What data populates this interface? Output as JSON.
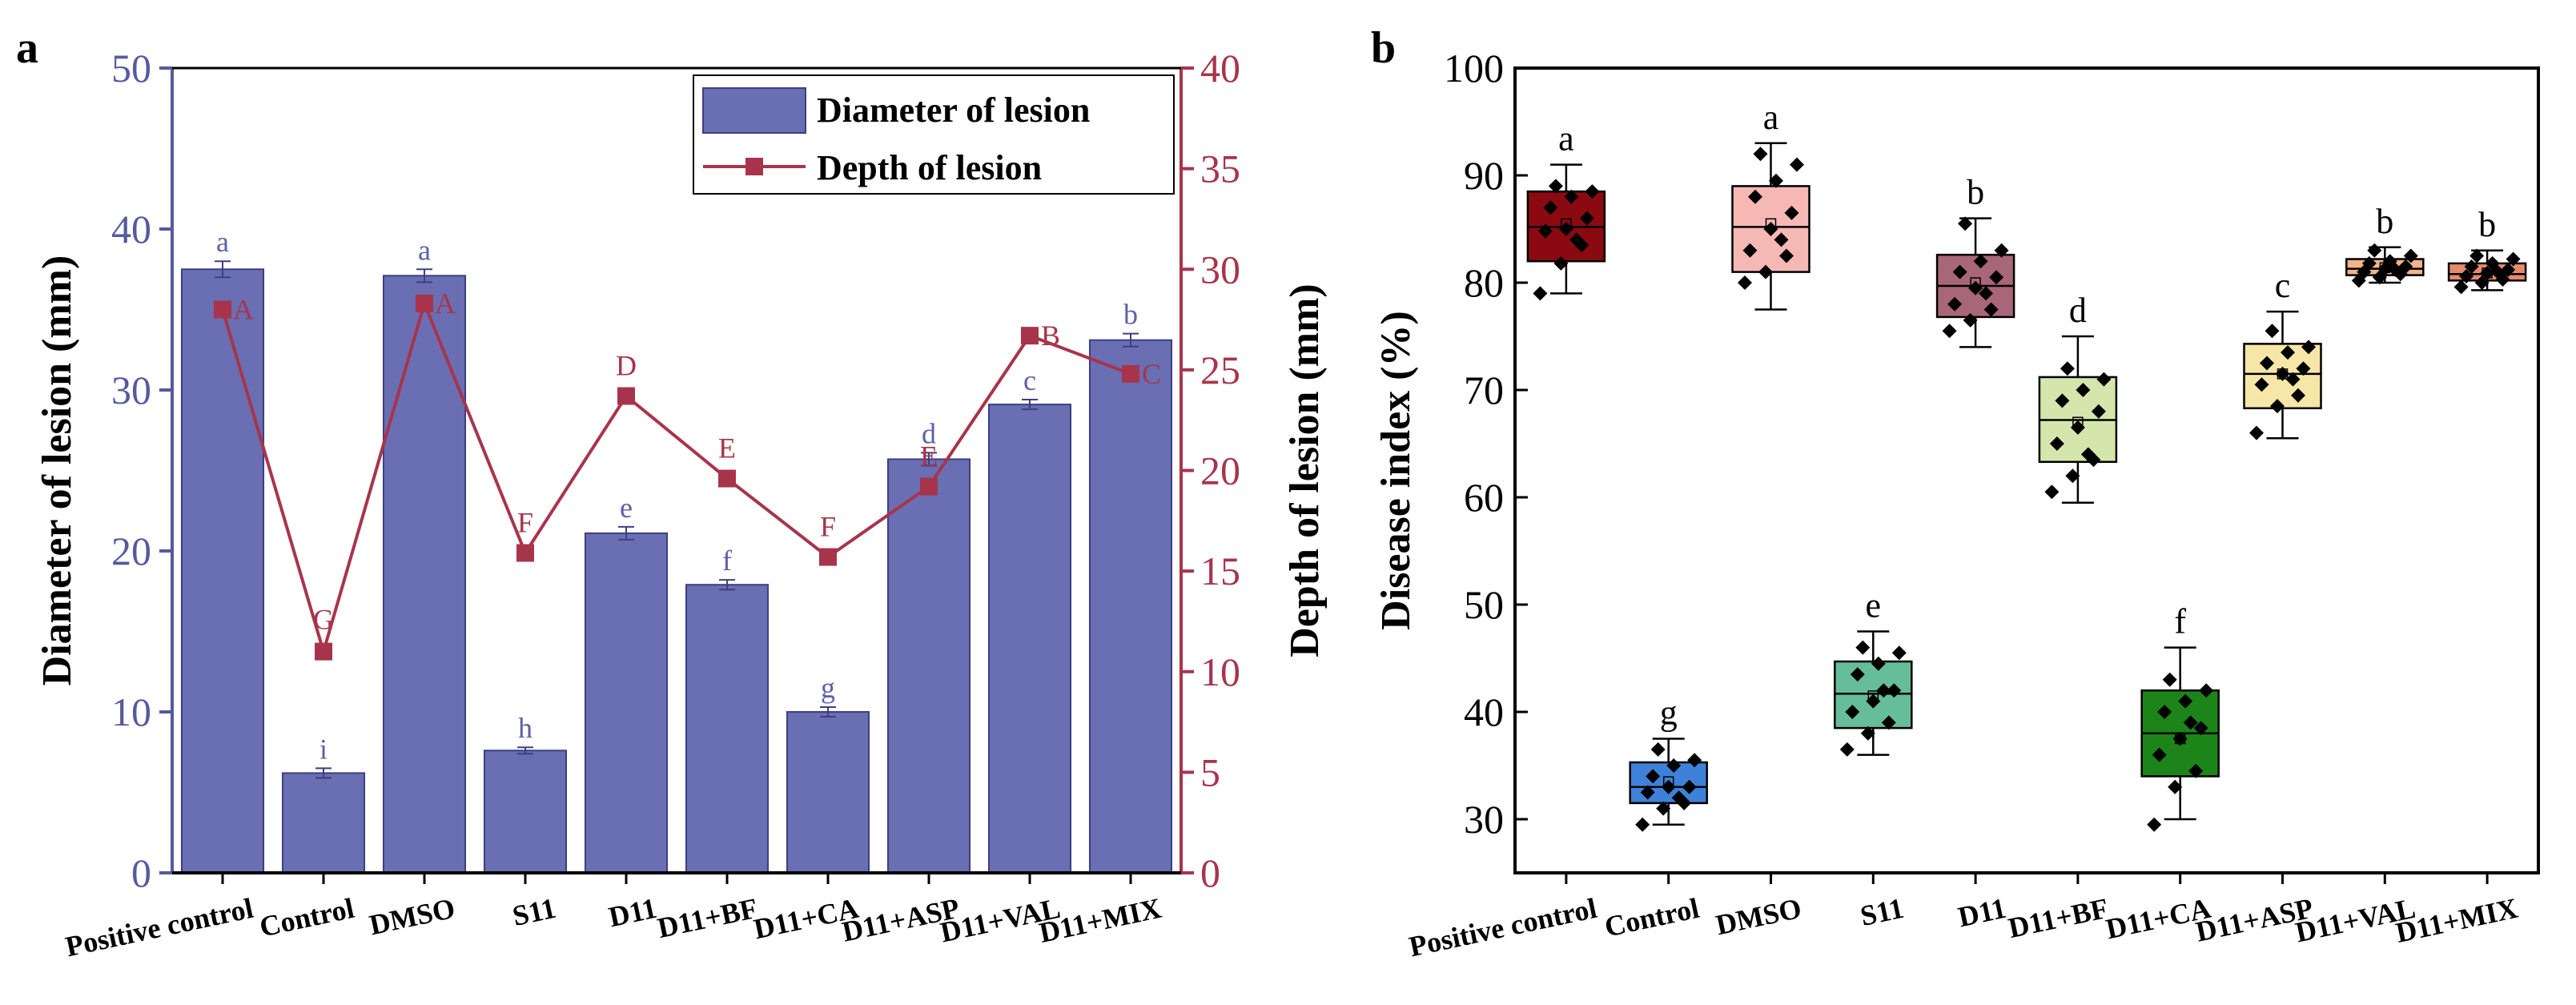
{
  "chart_data": [
    {
      "panel": "a",
      "type": "bar+line",
      "categories": [
        "Positive control",
        "Control",
        "DMSO",
        "S11",
        "D11",
        "D11+BF",
        "D11+CA",
        "D11+ASP",
        "D11+VAL",
        "D11+MIX"
      ],
      "series": [
        {
          "name": "Diameter of lesion",
          "type": "bar",
          "axis": "left",
          "values": [
            37.5,
            6.2,
            37.1,
            7.6,
            21.1,
            17.9,
            10.0,
            25.7,
            29.1,
            33.1
          ],
          "errors": [
            0.5,
            0.3,
            0.4,
            0.2,
            0.4,
            0.3,
            0.3,
            0.4,
            0.3,
            0.4
          ],
          "labels": [
            "a",
            "i",
            "a",
            "h",
            "e",
            "f",
            "g",
            "d",
            "c",
            "b"
          ],
          "color": "#6a6eb3"
        },
        {
          "name": "Depth of lesion",
          "type": "line",
          "axis": "right",
          "values": [
            28.0,
            11.0,
            28.3,
            15.9,
            23.7,
            19.6,
            15.7,
            19.2,
            26.7,
            24.8
          ],
          "labels": [
            "A",
            "G",
            "A",
            "F",
            "D",
            "E",
            "F",
            "E",
            "B",
            "C"
          ],
          "color": "#a8344b"
        }
      ],
      "ylabel_left": "Diameter of lesion (mm)",
      "ylabel_right": "Depth of lesion (mm)",
      "ylim_left": [
        0,
        50
      ],
      "ylim_right": [
        0,
        40
      ],
      "yticks_left": [
        0,
        10,
        20,
        30,
        40,
        50
      ],
      "yticks_right": [
        0,
        5,
        10,
        15,
        20,
        25,
        30,
        35,
        40
      ],
      "legend": "top-right"
    },
    {
      "panel": "b",
      "type": "box",
      "categories": [
        "Positive control",
        "Control",
        "DMSO",
        "S11",
        "D11",
        "D11+BF",
        "D11+CA",
        "D11+ASP",
        "D11+VAL",
        "D11+MIX"
      ],
      "boxes": [
        {
          "min": 79,
          "q1": 82,
          "median": 85.2,
          "mean": 85.5,
          "q3": 88.5,
          "max": 91,
          "label": "a",
          "color": "#8b0a12",
          "points": [
            79,
            81.8,
            83.5,
            84.8,
            85,
            86,
            87,
            88,
            88.5,
            89,
            84
          ]
        },
        {
          "min": 29.5,
          "q1": 31.5,
          "median": 33,
          "mean": 33.5,
          "q3": 35.3,
          "max": 37.5,
          "label": "g",
          "color": "#3d82d8",
          "points": [
            29.5,
            31,
            31.5,
            32.5,
            33,
            33,
            34,
            35,
            35.5,
            36.5,
            32
          ]
        },
        {
          "min": 77.5,
          "q1": 81,
          "median": 85.2,
          "mean": 85.5,
          "q3": 89,
          "max": 93,
          "label": "a",
          "color": "#f6b8b5",
          "points": [
            80,
            81,
            82.5,
            83,
            85,
            86.5,
            88,
            89.5,
            91,
            92,
            84
          ]
        },
        {
          "min": 36,
          "q1": 38.5,
          "median": 41.7,
          "mean": 41.5,
          "q3": 44.7,
          "max": 47.5,
          "label": "e",
          "color": "#66bd9a",
          "points": [
            36.5,
            38,
            39,
            40,
            41,
            42,
            43.5,
            44.5,
            45.5,
            46,
            42
          ]
        },
        {
          "min": 74,
          "q1": 76.8,
          "median": 79.7,
          "mean": 80,
          "q3": 82.6,
          "max": 86,
          "label": "b",
          "color": "#a8667a",
          "points": [
            75.5,
            76.5,
            77.5,
            78,
            79.5,
            80.5,
            81,
            82,
            83,
            85.5,
            79
          ]
        },
        {
          "min": 59.5,
          "q1": 63.3,
          "median": 67.2,
          "mean": 67,
          "q3": 71.2,
          "max": 75,
          "label": "d",
          "color": "#d5e6ad",
          "points": [
            60.5,
            62,
            63.5,
            65,
            66.5,
            68,
            69,
            70,
            71,
            72,
            64
          ]
        },
        {
          "min": 30,
          "q1": 34,
          "median": 38,
          "mean": 37.5,
          "q3": 42,
          "max": 46,
          "label": "f",
          "color": "#1c8418",
          "points": [
            29.5,
            33,
            34.5,
            36,
            37.5,
            38.5,
            40,
            41,
            42,
            43,
            39
          ]
        },
        {
          "min": 65.5,
          "q1": 68.3,
          "median": 71.5,
          "mean": 71.5,
          "q3": 74.3,
          "max": 77.3,
          "label": "c",
          "color": "#f6e6a8",
          "points": [
            66,
            68.5,
            69.5,
            70.5,
            71.5,
            72,
            72.5,
            73.5,
            74,
            75.5,
            71
          ]
        },
        {
          "min": 80,
          "q1": 80.7,
          "median": 81.3,
          "mean": 81.4,
          "q3": 82.2,
          "max": 83.3,
          "label": "b",
          "color": "#f2b48a",
          "points": [
            80.2,
            80.5,
            80.8,
            81,
            81.3,
            81.5,
            81.8,
            82,
            82.5,
            83,
            81.2
          ]
        },
        {
          "min": 79.3,
          "q1": 80.2,
          "median": 80.8,
          "mean": 80.9,
          "q3": 81.8,
          "max": 83,
          "label": "b",
          "color": "#e68a6c",
          "points": [
            79.6,
            80,
            80.3,
            80.6,
            80.9,
            81.2,
            81.5,
            81.8,
            82.2,
            82.5,
            81
          ]
        }
      ],
      "ylabel": "Disease index (%)",
      "ylim": [
        25,
        100
      ],
      "yticks": [
        30,
        40,
        50,
        60,
        70,
        80,
        90,
        100
      ]
    }
  ],
  "panel_labels": {
    "a": "a",
    "b": "b"
  }
}
